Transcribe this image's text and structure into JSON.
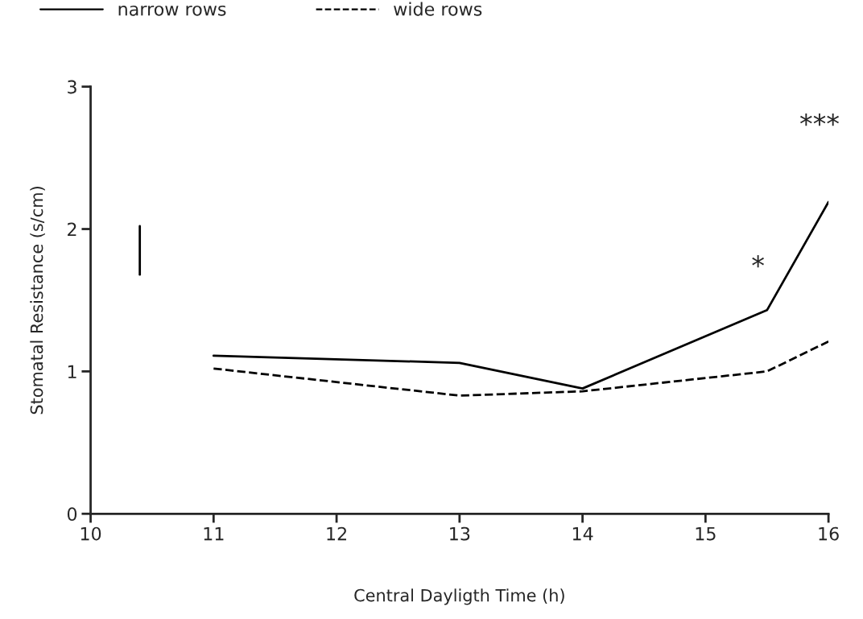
{
  "chart_data": {
    "type": "line",
    "xlabel": "Central Dayligth Time (h)",
    "ylabel": "Stomatal Resistance (s/cm)",
    "x": [
      11,
      13,
      14,
      15.5,
      16
    ],
    "series": [
      {
        "name": "narrow rows",
        "color": "#000000",
        "line_style": "solid",
        "values": [
          1.11,
          1.06,
          0.88,
          1.43,
          2.19
        ]
      },
      {
        "name": "wide rows",
        "color": "#000000",
        "line_style": "dashed",
        "values": [
          1.02,
          0.83,
          0.86,
          1.0,
          1.21
        ]
      },
      {
        "type": "line",
        "line_style": "solid",
        "color": "#000000",
        "x": [
          10.4,
          10.4
        ],
        "values": [
          1.68,
          2.02
        ]
      }
    ],
    "annotations": [
      "*",
      "***"
    ],
    "xlim": [
      10,
      16
    ],
    "xticks": [
      10,
      11,
      12,
      13,
      14,
      15,
      16
    ],
    "ylim": [
      0,
      3
    ],
    "yticks": [
      0,
      1,
      2,
      3
    ],
    "grid": false,
    "legend": "top"
  }
}
